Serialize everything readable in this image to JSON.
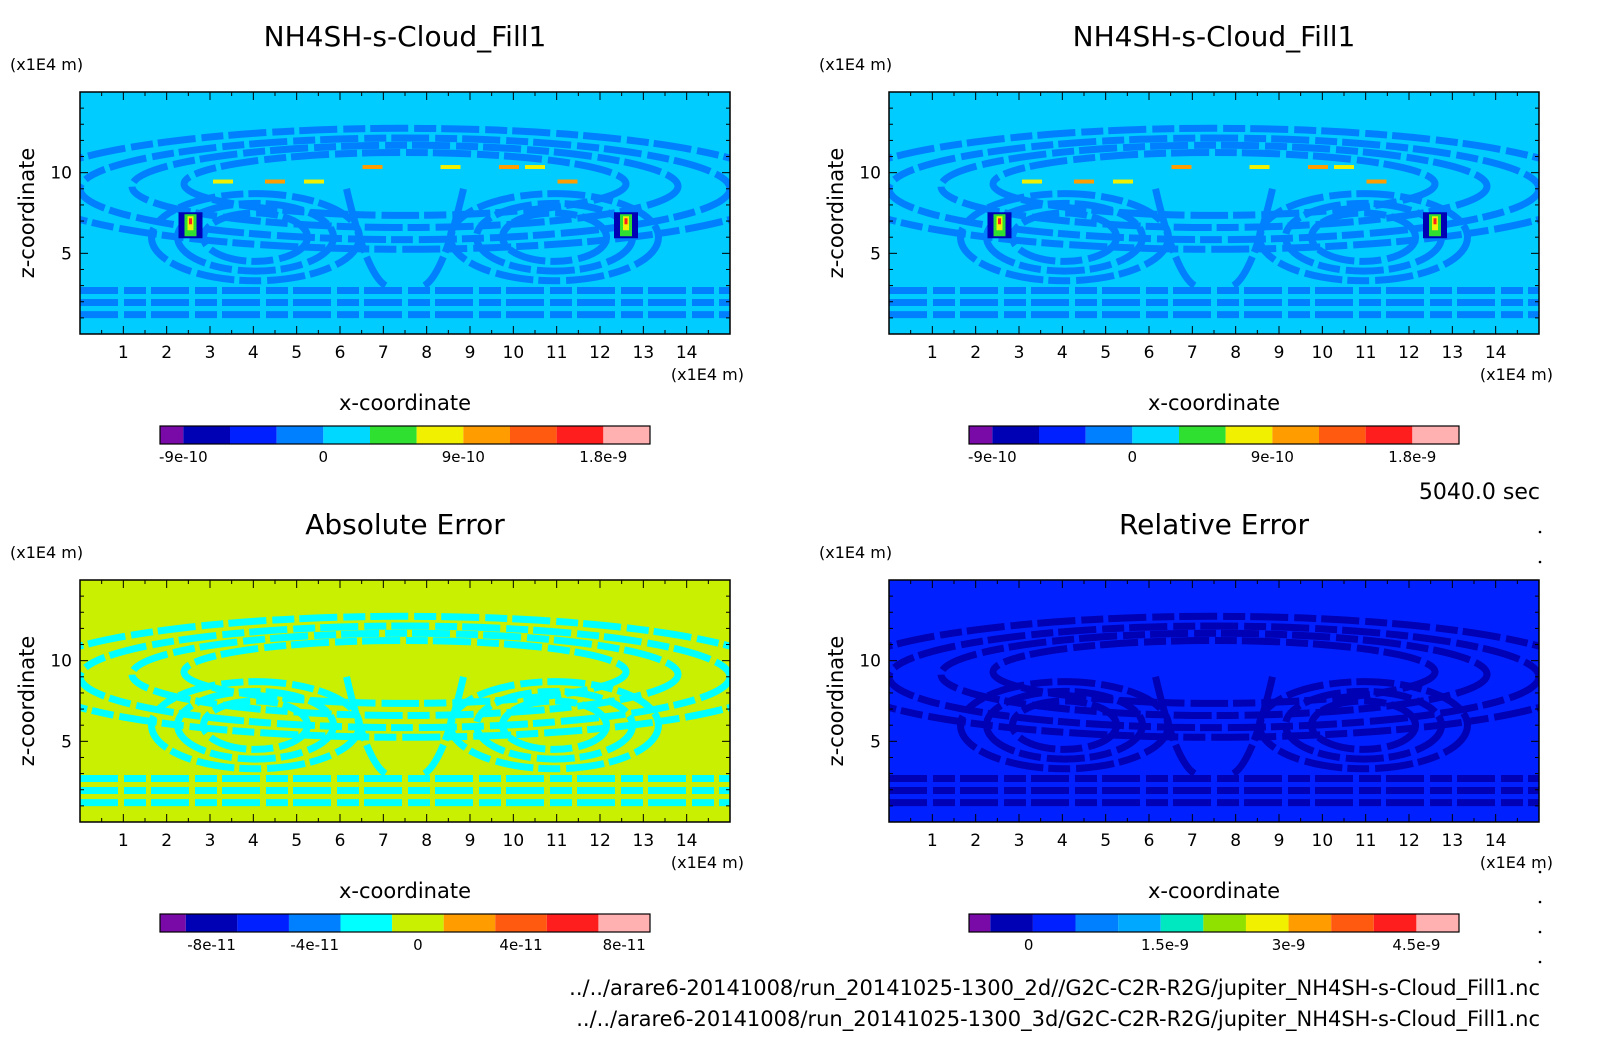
{
  "figure": {
    "time_label": "5040.0 sec",
    "file_paths": [
      "../../arare6-20141008/run_20141025-1300_2d//G2C-C2R-R2G/jupiter_NH4SH-s-Cloud_Fill1.nc",
      "../../arare6-20141008/run_20141025-1300_3d/G2C-C2R-R2G/jupiter_NH4SH-s-Cloud_Fill1.nc"
    ]
  },
  "chart_data": [
    {
      "type": "heatmap",
      "title": "NH4SH-s-Cloud_Fill1",
      "xlabel": "x-coordinate",
      "ylabel": "z-coordinate",
      "x_unit": "(x1E4 m)",
      "y_unit": "(x1E4 m)",
      "xlim": [
        0,
        15
      ],
      "ylim": [
        0,
        15
      ],
      "x_ticks": [
        1,
        2,
        3,
        4,
        5,
        6,
        7,
        8,
        9,
        10,
        11,
        12,
        13,
        14
      ],
      "x_tick_labels": [
        "1",
        "2",
        "3",
        "4",
        "5",
        "6",
        "7",
        "8",
        "9",
        "10",
        "11",
        "12",
        "13",
        "14"
      ],
      "y_ticks": [
        5,
        10
      ],
      "y_tick_labels": [
        "5",
        "10"
      ],
      "background": "#00ccff",
      "pattern": "rings",
      "pattern_color": "#0080ff",
      "hotspots": true,
      "colorbar": {
        "colors": [
          "#7a0aa8",
          "#0000b4",
          "#0020ff",
          "#0080ff",
          "#00d8ff",
          "#30e030",
          "#f0f000",
          "#ff9c00",
          "#ff5a10",
          "#ff1e1e",
          "#ffb0b0"
        ],
        "labels": [
          "-9e-10",
          "0",
          "9e-10",
          "1.8e-9"
        ],
        "label_pos": [
          0.5,
          3.5,
          6.5,
          9.5
        ]
      }
    },
    {
      "type": "heatmap",
      "title": "NH4SH-s-Cloud_Fill1",
      "xlabel": "x-coordinate",
      "ylabel": "z-coordinate",
      "x_unit": "(x1E4 m)",
      "y_unit": "(x1E4 m)",
      "xlim": [
        0,
        15
      ],
      "ylim": [
        0,
        15
      ],
      "x_ticks": [
        1,
        2,
        3,
        4,
        5,
        6,
        7,
        8,
        9,
        10,
        11,
        12,
        13,
        14
      ],
      "x_tick_labels": [
        "1",
        "2",
        "3",
        "4",
        "5",
        "6",
        "7",
        "8",
        "9",
        "10",
        "11",
        "12",
        "13",
        "14"
      ],
      "y_ticks": [
        5,
        10
      ],
      "y_tick_labels": [
        "5",
        "10"
      ],
      "background": "#00ccff",
      "pattern": "rings",
      "pattern_color": "#0080ff",
      "hotspots": true,
      "colorbar": {
        "colors": [
          "#7a0aa8",
          "#0000b4",
          "#0020ff",
          "#0080ff",
          "#00d8ff",
          "#30e030",
          "#f0f000",
          "#ff9c00",
          "#ff5a10",
          "#ff1e1e",
          "#ffb0b0"
        ],
        "labels": [
          "-9e-10",
          "0",
          "9e-10",
          "1.8e-9"
        ],
        "label_pos": [
          0.5,
          3.5,
          6.5,
          9.5
        ]
      }
    },
    {
      "type": "heatmap",
      "title": "Absolute Error",
      "xlabel": "x-coordinate",
      "ylabel": "z-coordinate",
      "x_unit": "(x1E4 m)",
      "y_unit": "(x1E4 m)",
      "xlim": [
        0,
        15
      ],
      "ylim": [
        0,
        15
      ],
      "x_ticks": [
        1,
        2,
        3,
        4,
        5,
        6,
        7,
        8,
        9,
        10,
        11,
        12,
        13,
        14
      ],
      "x_tick_labels": [
        "1",
        "2",
        "3",
        "4",
        "5",
        "6",
        "7",
        "8",
        "9",
        "10",
        "11",
        "12",
        "13",
        "14"
      ],
      "y_ticks": [
        5,
        10
      ],
      "y_tick_labels": [
        "5",
        "10"
      ],
      "background": "#c8f000",
      "pattern": "rings",
      "pattern_color": "#00ffff",
      "hotspots": false,
      "colorbar": {
        "colors": [
          "#7a0aa8",
          "#0000b4",
          "#0020ff",
          "#0080ff",
          "#00ffff",
          "#c8f000",
          "#ff9c00",
          "#ff5a10",
          "#ff1e1e",
          "#ffb0b0"
        ],
        "labels": [
          "-8e-11",
          "-4e-11",
          "0",
          "4e-11",
          "8e-11"
        ],
        "label_pos": [
          1,
          3,
          5,
          7,
          9
        ]
      }
    },
    {
      "type": "heatmap",
      "title": "Relative Error",
      "xlabel": "x-coordinate",
      "ylabel": "z-coordinate",
      "x_unit": "(x1E4 m)",
      "y_unit": "(x1E4 m)",
      "xlim": [
        0,
        15
      ],
      "ylim": [
        0,
        15
      ],
      "x_ticks": [
        1,
        2,
        3,
        4,
        5,
        6,
        7,
        8,
        9,
        10,
        11,
        12,
        13,
        14
      ],
      "x_tick_labels": [
        "1",
        "2",
        "3",
        "4",
        "5",
        "6",
        "7",
        "8",
        "9",
        "10",
        "11",
        "12",
        "13",
        "14"
      ],
      "y_ticks": [
        5,
        10
      ],
      "y_tick_labels": [
        "5",
        "10"
      ],
      "background": "#0020ff",
      "pattern": "rings",
      "pattern_color": "#0000b4",
      "hotspots": false,
      "colorbar": {
        "colors": [
          "#7a0aa8",
          "#0000b4",
          "#0020ff",
          "#0080ff",
          "#00a8ff",
          "#00e8c0",
          "#90e000",
          "#f0f000",
          "#ff9c00",
          "#ff5a10",
          "#ff1e1e",
          "#ffb0b0"
        ],
        "labels": [
          "0",
          "1.5e-9",
          "3e-9",
          "4.5e-9"
        ],
        "label_pos": [
          1.4,
          4.6,
          7.5,
          10.5
        ]
      }
    }
  ]
}
